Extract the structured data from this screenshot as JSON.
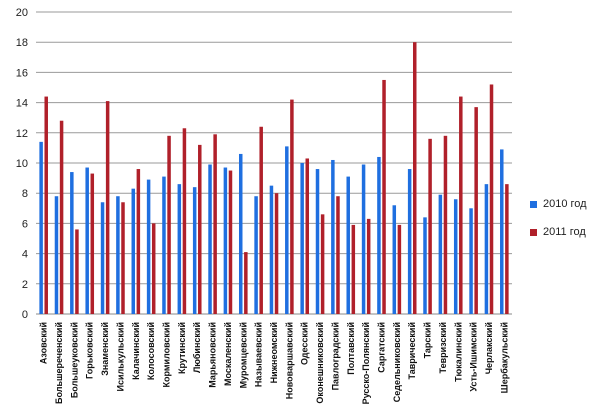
{
  "chart_data": {
    "type": "bar",
    "title": "",
    "xlabel": "",
    "ylabel": "",
    "ylim": [
      0,
      20
    ],
    "yticks": [
      "0",
      "2",
      "4",
      "6",
      "8",
      "10",
      "12",
      "14",
      "16",
      "18",
      "20"
    ],
    "grid": "horizontal",
    "legend_position": "right",
    "categories": [
      "Азовский",
      "Большереченский",
      "Большеуковский",
      "Горьковский",
      "Знаменский",
      "Исилькульский",
      "Калачинский",
      "Колосовский",
      "Кормиловский",
      "Крутинский",
      "Любинский",
      "Марьяновский",
      "Москаленский",
      "Муромцевский",
      "Называевский",
      "Нижнеомский",
      "Нововаршавский",
      "Одесский",
      "Оконешниковский",
      "Павлоградский",
      "Полтавский",
      "Русско-Полянский",
      "Саргатский",
      "Седельниковский",
      "Таврический",
      "Тарский",
      "Тевризский",
      "Тюкалинский",
      "Усть-Ишимский",
      "Черлакский",
      "Шербакульский"
    ],
    "series": [
      {
        "name": "2010 год",
        "color": "#1f6fe0",
        "values": [
          11.4,
          7.8,
          9.4,
          9.7,
          7.4,
          7.8,
          8.3,
          8.9,
          9.1,
          8.6,
          8.4,
          9.9,
          9.7,
          10.6,
          7.8,
          8.5,
          11.1,
          10.0,
          9.6,
          10.2,
          9.1,
          9.9,
          10.4,
          7.2,
          9.6,
          6.4,
          7.9,
          7.6,
          7.0,
          8.6,
          10.9
        ]
      },
      {
        "name": "2011 год",
        "color": "#b0202a",
        "values": [
          14.4,
          12.8,
          5.6,
          9.3,
          14.1,
          7.4,
          9.6,
          6.0,
          11.8,
          12.3,
          11.2,
          11.9,
          9.5,
          4.1,
          12.4,
          8.0,
          14.2,
          10.3,
          6.6,
          7.8,
          5.9,
          6.3,
          15.5,
          5.9,
          18.0,
          11.6,
          11.8,
          14.4,
          13.7,
          15.2,
          8.6
        ]
      }
    ]
  }
}
